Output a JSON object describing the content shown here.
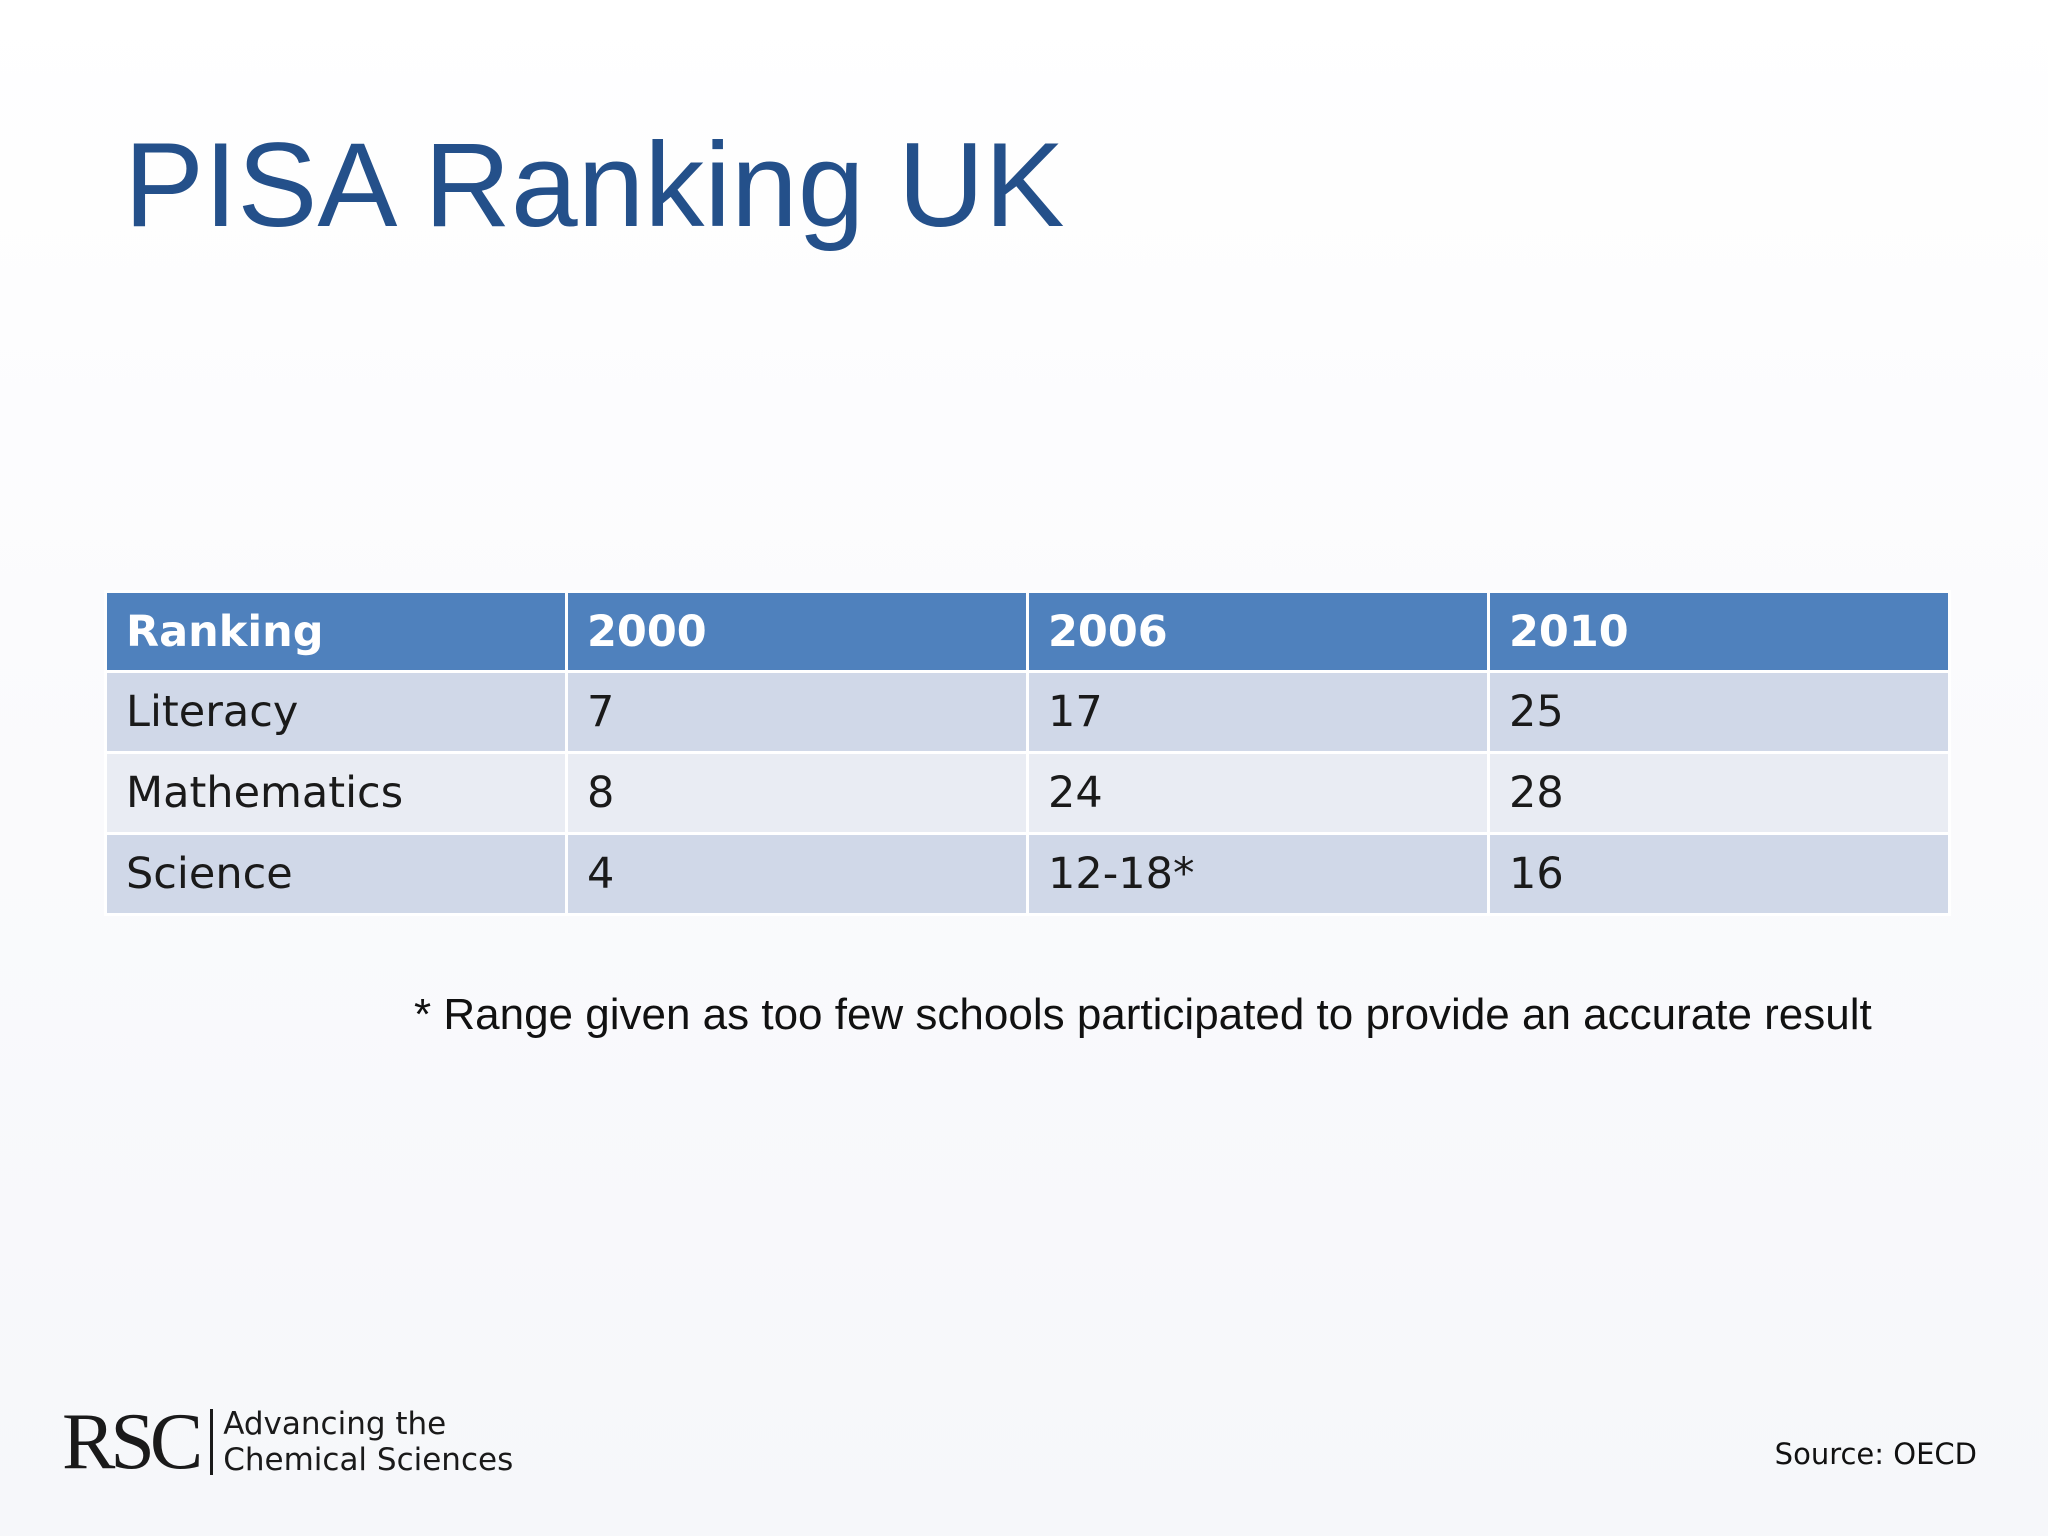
{
  "slide": {
    "title": "PISA Ranking UK",
    "footnote": "* Range given as too few schools participated to provide an accurate result",
    "source": "Source: OECD",
    "logo": {
      "mark": "RSC",
      "tagline_line1": "Advancing the",
      "tagline_line2": "Chemical Sciences"
    }
  },
  "table": {
    "headers": [
      "Ranking",
      "2000",
      "2006",
      "2010"
    ],
    "rows": [
      [
        "Literacy",
        "7",
        "17",
        "25"
      ],
      [
        "Mathematics",
        "8",
        "24",
        "28"
      ],
      [
        "Science",
        "4",
        "12-18*",
        "16"
      ]
    ]
  },
  "colors": {
    "title": "#24508a",
    "header_bg": "#4f81bd",
    "row_band_dark": "#d0d8e8",
    "row_band_light": "#e9ecf3"
  }
}
